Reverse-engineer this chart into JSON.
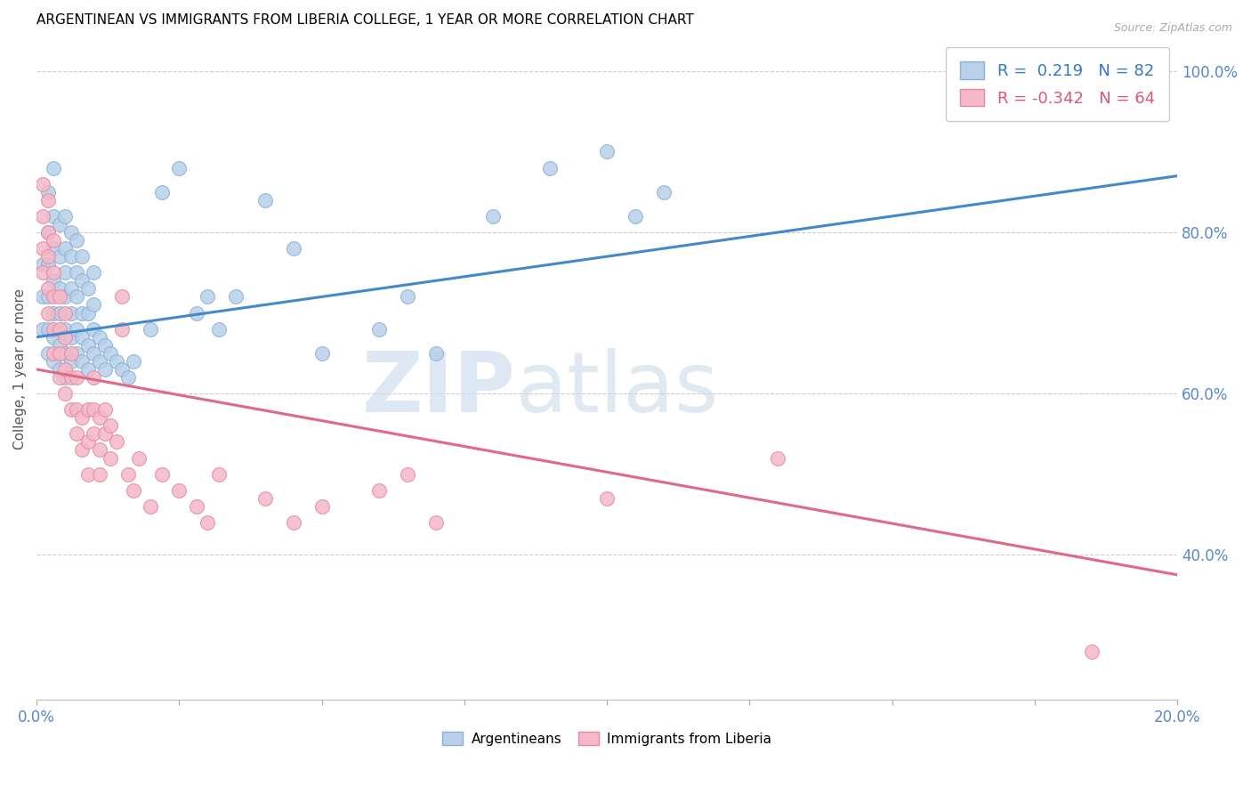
{
  "title": "ARGENTINEAN VS IMMIGRANTS FROM LIBERIA COLLEGE, 1 YEAR OR MORE CORRELATION CHART",
  "source": "Source: ZipAtlas.com",
  "ylabel": "College, 1 year or more",
  "right_yticks": [
    40.0,
    60.0,
    80.0,
    100.0
  ],
  "legend_blue": {
    "R": 0.219,
    "N": 82
  },
  "legend_pink": {
    "R": -0.342,
    "N": 64
  },
  "blue_color": "#b8d0e8",
  "blue_edge": "#8ab0d8",
  "pink_color": "#f4b8c8",
  "pink_edge": "#e888a0",
  "blue_line_color": "#4488cc",
  "pink_line_color": "#e06888",
  "watermark_zip": "ZIP",
  "watermark_atlas": "atlas",
  "blue_line_y0": 0.67,
  "blue_line_y1": 0.87,
  "pink_line_y0": 0.63,
  "pink_line_y1": 0.375,
  "xlim": [
    0.0,
    0.2
  ],
  "ylim": [
    0.22,
    1.04
  ],
  "blue_scatter_x": [
    0.001,
    0.001,
    0.001,
    0.002,
    0.002,
    0.002,
    0.002,
    0.002,
    0.002,
    0.003,
    0.003,
    0.003,
    0.003,
    0.003,
    0.003,
    0.003,
    0.004,
    0.004,
    0.004,
    0.004,
    0.004,
    0.004,
    0.005,
    0.005,
    0.005,
    0.005,
    0.005,
    0.005,
    0.005,
    0.006,
    0.006,
    0.006,
    0.006,
    0.006,
    0.006,
    0.007,
    0.007,
    0.007,
    0.007,
    0.007,
    0.008,
    0.008,
    0.008,
    0.008,
    0.008,
    0.009,
    0.009,
    0.009,
    0.009,
    0.01,
    0.01,
    0.01,
    0.01,
    0.011,
    0.011,
    0.012,
    0.012,
    0.013,
    0.014,
    0.015,
    0.016,
    0.017,
    0.02,
    0.022,
    0.025,
    0.028,
    0.03,
    0.032,
    0.035,
    0.04,
    0.045,
    0.05,
    0.06,
    0.065,
    0.07,
    0.08,
    0.09,
    0.1,
    0.105,
    0.11
  ],
  "blue_scatter_y": [
    0.68,
    0.72,
    0.76,
    0.65,
    0.68,
    0.72,
    0.76,
    0.8,
    0.85,
    0.64,
    0.67,
    0.7,
    0.74,
    0.78,
    0.82,
    0.88,
    0.63,
    0.66,
    0.7,
    0.73,
    0.77,
    0.81,
    0.62,
    0.65,
    0.68,
    0.72,
    0.75,
    0.78,
    0.82,
    0.64,
    0.67,
    0.7,
    0.73,
    0.77,
    0.8,
    0.65,
    0.68,
    0.72,
    0.75,
    0.79,
    0.64,
    0.67,
    0.7,
    0.74,
    0.77,
    0.63,
    0.66,
    0.7,
    0.73,
    0.65,
    0.68,
    0.71,
    0.75,
    0.64,
    0.67,
    0.63,
    0.66,
    0.65,
    0.64,
    0.63,
    0.62,
    0.64,
    0.68,
    0.85,
    0.88,
    0.7,
    0.72,
    0.68,
    0.72,
    0.84,
    0.78,
    0.65,
    0.68,
    0.72,
    0.65,
    0.82,
    0.88,
    0.9,
    0.82,
    0.85
  ],
  "pink_scatter_x": [
    0.001,
    0.001,
    0.001,
    0.001,
    0.002,
    0.002,
    0.002,
    0.002,
    0.002,
    0.003,
    0.003,
    0.003,
    0.003,
    0.003,
    0.004,
    0.004,
    0.004,
    0.004,
    0.005,
    0.005,
    0.005,
    0.005,
    0.006,
    0.006,
    0.006,
    0.007,
    0.007,
    0.007,
    0.008,
    0.008,
    0.009,
    0.009,
    0.009,
    0.01,
    0.01,
    0.01,
    0.011,
    0.011,
    0.011,
    0.012,
    0.012,
    0.013,
    0.013,
    0.014,
    0.015,
    0.015,
    0.016,
    0.017,
    0.018,
    0.02,
    0.022,
    0.025,
    0.028,
    0.03,
    0.032,
    0.04,
    0.045,
    0.05,
    0.06,
    0.065,
    0.07,
    0.1,
    0.13,
    0.185
  ],
  "pink_scatter_y": [
    0.75,
    0.78,
    0.82,
    0.86,
    0.7,
    0.73,
    0.77,
    0.8,
    0.84,
    0.65,
    0.68,
    0.72,
    0.75,
    0.79,
    0.62,
    0.65,
    0.68,
    0.72,
    0.6,
    0.63,
    0.67,
    0.7,
    0.58,
    0.62,
    0.65,
    0.55,
    0.58,
    0.62,
    0.53,
    0.57,
    0.5,
    0.54,
    0.58,
    0.55,
    0.58,
    0.62,
    0.5,
    0.53,
    0.57,
    0.55,
    0.58,
    0.52,
    0.56,
    0.54,
    0.68,
    0.72,
    0.5,
    0.48,
    0.52,
    0.46,
    0.5,
    0.48,
    0.46,
    0.44,
    0.5,
    0.47,
    0.44,
    0.46,
    0.48,
    0.5,
    0.44,
    0.47,
    0.52,
    0.28
  ]
}
